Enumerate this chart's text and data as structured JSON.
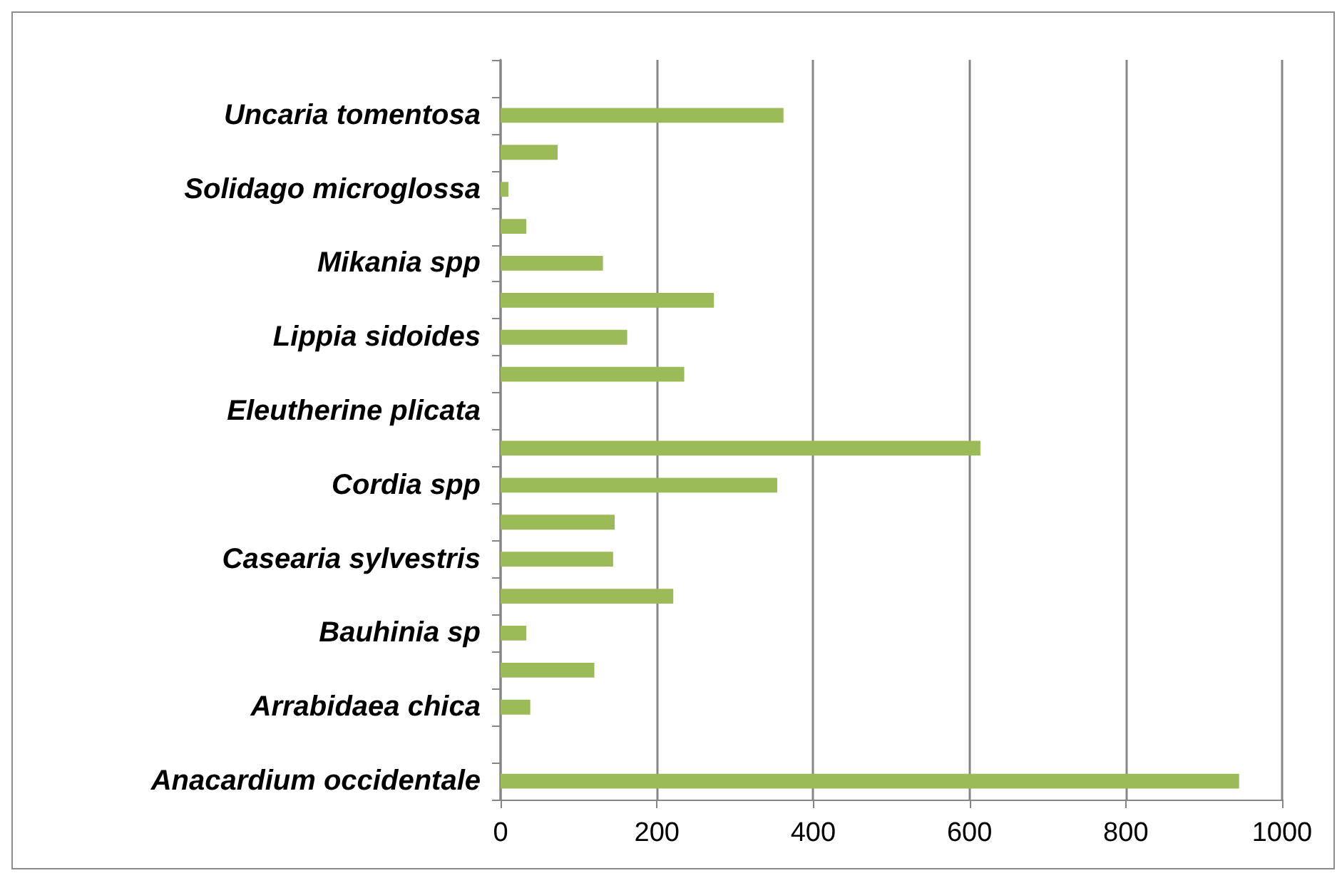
{
  "chart_data": {
    "type": "bar",
    "orientation": "horizontal",
    "categories": [
      null,
      "Uncaria tomentosa",
      null,
      "Solidago microglossa",
      null,
      "Mikania spp",
      null,
      "Lippia sidoides",
      null,
      "Eleutherine plicata",
      null,
      "Cordia spp",
      null,
      "Casearia sylvestris",
      null,
      "Bauhinia sp",
      null,
      "Arrabidaea chica",
      null,
      "Anacardium occidentale"
    ],
    "values": [
      null,
      362,
      73,
      10,
      33,
      131,
      273,
      162,
      235,
      null,
      614,
      354,
      146,
      144,
      221,
      33,
      120,
      38,
      null,
      945
    ],
    "color": "#9bbb59",
    "xlim": [
      0,
      1000
    ],
    "xticks": [
      0,
      200,
      400,
      600,
      800,
      1000
    ],
    "grid": "x"
  }
}
